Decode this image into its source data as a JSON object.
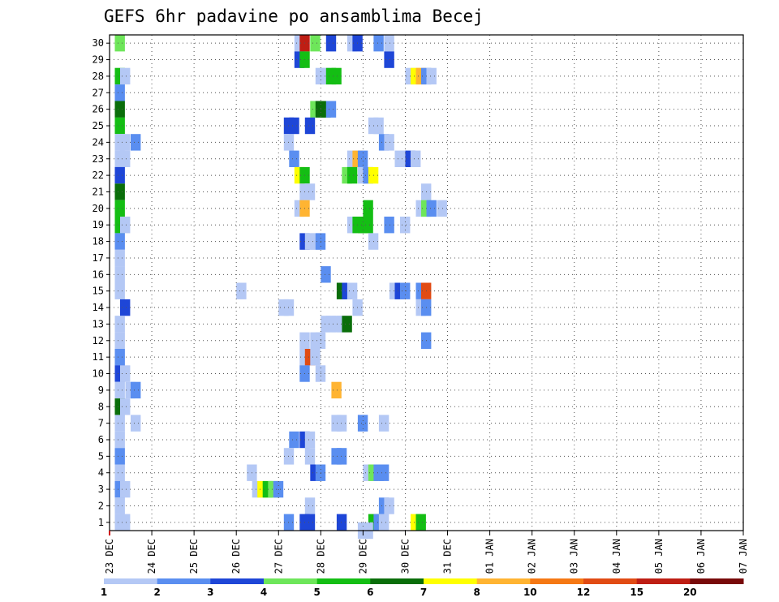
{
  "chart_data": {
    "type": "heatmap",
    "title": "GEFS 6hr padavine po ansamblima Becej",
    "xlabel": "",
    "ylabel": "",
    "x_ticks": [
      "23 DEC",
      "24 DEC",
      "25 DEC",
      "26 DEC",
      "27 DEC",
      "28 DEC",
      "29 DEC",
      "30 DEC",
      "31 DEC",
      "01 JAN",
      "02 JAN",
      "03 JAN",
      "04 JAN",
      "05 JAN",
      "06 JAN",
      "07 JAN"
    ],
    "y_ticks": [
      "1",
      "2",
      "3",
      "4",
      "5",
      "6",
      "7",
      "8",
      "9",
      "10",
      "11",
      "12",
      "13",
      "14",
      "15",
      "16",
      "17",
      "18",
      "19",
      "20",
      "21",
      "22",
      "23",
      "24",
      "25",
      "26",
      "27",
      "28",
      "29",
      "30"
    ],
    "ylim": [
      0.5,
      30.5
    ],
    "x_unit": "6-hour step from 23 DEC 00Z",
    "xlim": [
      0,
      60
    ],
    "grid": true,
    "colorbar": {
      "labels": [
        "1",
        "2",
        "3",
        "4",
        "5",
        "6",
        "7",
        "8",
        "10",
        "12",
        "15",
        "20"
      ],
      "colors": [
        "#b4c8f5",
        "#5a8ef0",
        "#1e46d7",
        "#6ee65a",
        "#14be14",
        "#0a6e0a",
        "#ffff00",
        "#ffb432",
        "#f57814",
        "#e14b14",
        "#be1e14",
        "#780a0a"
      ]
    },
    "cells": [
      {
        "m": 30,
        "t": [
          [
            0.5,
            4
          ]
        ]
      },
      {
        "m": 30,
        "t": [
          [
            17.5,
            1
          ],
          [
            18,
            11
          ],
          [
            19,
            4
          ],
          [
            20.5,
            3
          ],
          [
            22.5,
            1
          ],
          [
            23,
            3
          ],
          [
            25,
            2
          ],
          [
            26,
            1
          ]
        ]
      },
      {
        "m": 29,
        "t": [
          [
            17.5,
            3
          ],
          [
            18,
            5
          ]
        ]
      },
      {
        "m": 29,
        "t": [
          [
            26,
            3
          ]
        ]
      },
      {
        "m": 28,
        "t": [
          [
            0.5,
            5
          ],
          [
            1,
            1
          ],
          [
            19.5,
            1
          ],
          [
            20,
            1
          ],
          [
            20.5,
            5
          ],
          [
            21,
            5
          ]
        ]
      },
      {
        "m": 28,
        "t": [
          [
            28,
            1
          ],
          [
            28.5,
            7
          ],
          [
            29,
            8
          ],
          [
            29.5,
            2
          ],
          [
            30,
            1
          ]
        ]
      },
      {
        "m": 27,
        "t": [
          [
            0.5,
            2
          ]
        ]
      },
      {
        "m": 26,
        "t": [
          [
            0.5,
            6
          ],
          [
            19,
            4
          ],
          [
            19.5,
            6
          ],
          [
            20,
            6
          ],
          [
            20.5,
            2
          ]
        ]
      },
      {
        "m": 25,
        "t": [
          [
            0.5,
            5
          ],
          [
            16.5,
            3
          ],
          [
            17,
            3
          ],
          [
            18.5,
            3
          ],
          [
            24.5,
            1
          ],
          [
            25,
            1
          ]
        ]
      },
      {
        "m": 24,
        "t": [
          [
            0.5,
            1
          ],
          [
            1,
            1
          ],
          [
            2,
            2
          ],
          [
            16.5,
            1
          ],
          [
            25.5,
            2
          ],
          [
            26,
            1
          ]
        ]
      },
      {
        "m": 23,
        "t": [
          [
            0.5,
            1
          ],
          [
            1,
            1
          ],
          [
            17,
            2
          ],
          [
            22.5,
            1
          ],
          [
            23,
            8
          ],
          [
            23.5,
            2
          ],
          [
            27,
            1
          ],
          [
            27.5,
            1
          ],
          [
            28,
            3
          ],
          [
            28.5,
            1
          ]
        ]
      },
      {
        "m": 22,
        "t": [
          [
            0.5,
            3
          ],
          [
            17.5,
            7
          ],
          [
            18,
            5
          ],
          [
            22,
            4
          ],
          [
            22.5,
            5
          ],
          [
            23.5,
            1
          ],
          [
            24,
            2
          ],
          [
            24.5,
            7
          ]
        ]
      },
      {
        "m": 21,
        "t": [
          [
            0.5,
            6
          ],
          [
            18,
            1
          ],
          [
            18.5,
            1
          ]
        ]
      },
      {
        "m": 21,
        "t": [
          [
            29.5,
            1
          ]
        ]
      },
      {
        "m": 20,
        "t": [
          [
            0.5,
            5
          ],
          [
            17.5,
            1
          ],
          [
            18,
            8
          ],
          [
            24,
            5
          ],
          [
            29,
            1
          ],
          [
            29.5,
            4
          ],
          [
            30,
            2
          ],
          [
            31,
            1
          ]
        ]
      },
      {
        "m": 19,
        "t": [
          [
            0.5,
            5
          ],
          [
            1,
            1
          ],
          [
            22.5,
            1
          ],
          [
            23,
            5
          ],
          [
            23.5,
            5
          ],
          [
            24,
            5
          ],
          [
            26,
            2
          ],
          [
            27.5,
            1
          ]
        ]
      },
      {
        "m": 18,
        "t": [
          [
            0.5,
            2
          ],
          [
            18,
            3
          ],
          [
            18.5,
            1
          ],
          [
            19,
            1
          ],
          [
            19.5,
            2
          ],
          [
            24.5,
            1
          ]
        ]
      },
      {
        "m": 17,
        "t": [
          [
            0.5,
            1
          ]
        ]
      },
      {
        "m": 16,
        "t": [
          [
            0.5,
            1
          ],
          [
            20,
            2
          ]
        ]
      },
      {
        "m": 15,
        "t": [
          [
            0.5,
            1
          ],
          [
            12,
            1
          ],
          [
            21.5,
            6
          ],
          [
            22,
            3
          ],
          [
            22.5,
            1
          ],
          [
            26.5,
            1
          ],
          [
            27,
            3
          ],
          [
            27.5,
            2
          ],
          [
            29,
            2
          ],
          [
            29.5,
            10
          ]
        ]
      },
      {
        "m": 14,
        "t": [
          [
            1,
            3
          ],
          [
            16,
            1
          ],
          [
            16.5,
            1
          ],
          [
            23,
            1
          ],
          [
            29,
            1
          ],
          [
            29.5,
            2
          ]
        ]
      },
      {
        "m": 13,
        "t": [
          [
            0.5,
            1
          ],
          [
            20,
            1
          ],
          [
            20.5,
            1
          ],
          [
            21,
            1
          ],
          [
            21.5,
            1
          ],
          [
            22,
            6
          ]
        ]
      },
      {
        "m": 12,
        "t": [
          [
            0.5,
            1
          ],
          [
            18,
            1
          ],
          [
            19,
            1
          ],
          [
            19.5,
            1
          ],
          [
            29.5,
            2
          ]
        ]
      },
      {
        "m": 11,
        "t": [
          [
            0.5,
            2
          ],
          [
            18,
            1
          ],
          [
            18.5,
            10
          ],
          [
            19,
            1
          ]
        ]
      },
      {
        "m": 10,
        "t": [
          [
            0.5,
            3
          ],
          [
            1,
            1
          ],
          [
            18,
            2
          ],
          [
            19.5,
            1
          ]
        ]
      },
      {
        "m": 9,
        "t": [
          [
            0.5,
            1
          ],
          [
            1.5,
            1
          ],
          [
            2,
            2
          ],
          [
            21,
            8
          ]
        ]
      },
      {
        "m": 8,
        "t": [
          [
            0.5,
            6
          ],
          [
            1,
            1
          ]
        ]
      },
      {
        "m": 7,
        "t": [
          [
            0.5,
            1
          ],
          [
            2,
            1
          ],
          [
            21,
            1
          ],
          [
            21.5,
            1
          ],
          [
            23.5,
            2
          ],
          [
            25.5,
            1
          ]
        ]
      },
      {
        "m": 6,
        "t": [
          [
            0.5,
            1
          ],
          [
            17,
            2
          ],
          [
            18,
            3
          ],
          [
            18.5,
            1
          ]
        ]
      },
      {
        "m": 5,
        "t": [
          [
            0.5,
            2
          ],
          [
            16.5,
            1
          ],
          [
            18.5,
            1
          ],
          [
            21,
            2
          ],
          [
            21.5,
            2
          ]
        ]
      },
      {
        "m": 4,
        "t": [
          [
            0.5,
            1
          ],
          [
            13,
            1
          ],
          [
            19,
            3
          ],
          [
            19.5,
            2
          ],
          [
            24,
            1
          ],
          [
            24.5,
            4
          ],
          [
            25,
            2
          ],
          [
            25.5,
            2
          ]
        ]
      },
      {
        "m": 3,
        "t": [
          [
            0.5,
            2
          ],
          [
            1,
            1
          ],
          [
            13.5,
            1
          ],
          [
            14,
            7
          ],
          [
            14.5,
            5
          ],
          [
            15,
            4
          ],
          [
            15.5,
            2
          ]
        ]
      },
      {
        "m": 2,
        "t": [
          [
            0.5,
            1
          ],
          [
            18.5,
            1
          ],
          [
            25.5,
            2
          ],
          [
            26,
            1
          ]
        ]
      },
      {
        "m": 1,
        "t": [
          [
            0.5,
            1
          ],
          [
            1,
            1
          ],
          [
            16.5,
            2
          ],
          [
            18,
            3
          ],
          [
            18.5,
            3
          ],
          [
            21.5,
            3
          ],
          [
            24.5,
            5
          ],
          [
            25,
            2
          ],
          [
            25.5,
            1
          ],
          [
            28.5,
            7
          ],
          [
            29,
            5
          ]
        ]
      },
      {
        "m": 0.5,
        "t": [
          [
            23.5,
            1
          ],
          [
            24,
            1
          ]
        ]
      }
    ]
  }
}
